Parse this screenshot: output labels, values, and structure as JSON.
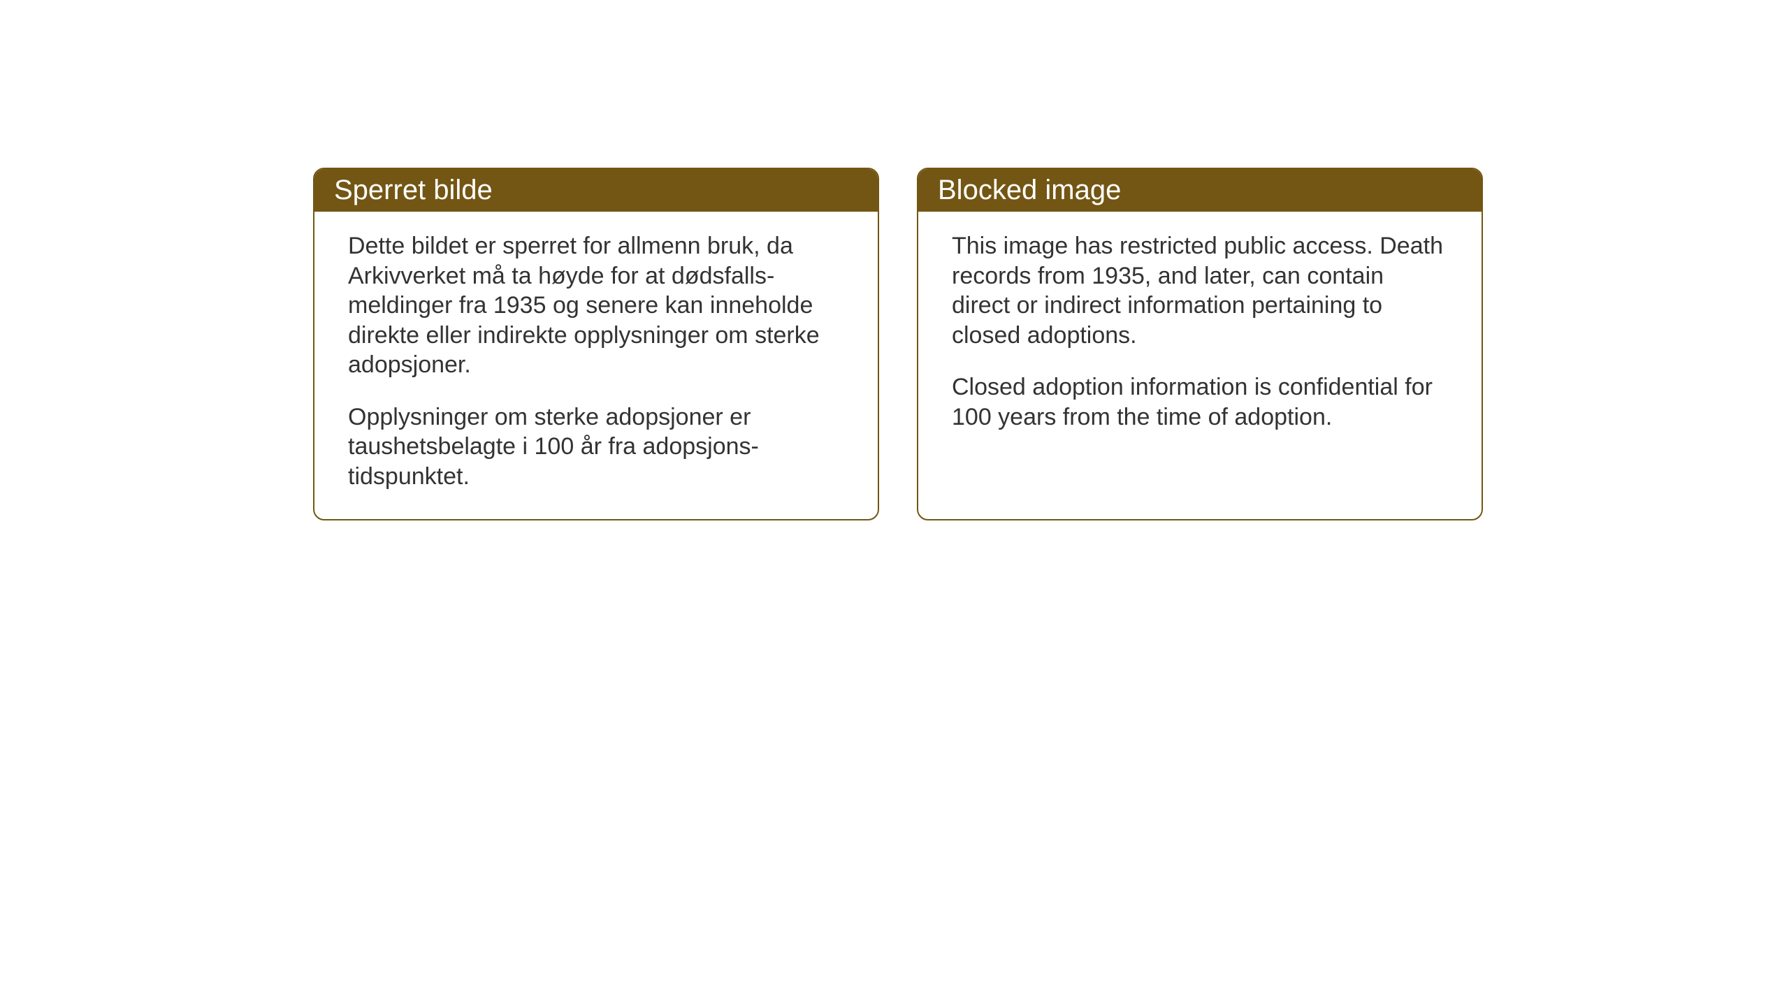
{
  "layout": {
    "background_color": "#ffffff",
    "card_border_color": "#735614",
    "card_border_radius": 16,
    "header_bg_color": "#735614",
    "header_text_color": "#ffffff",
    "body_text_color": "#333333",
    "header_fontsize": 40,
    "body_fontsize": 34
  },
  "notices": {
    "norwegian": {
      "title": "Sperret bilde",
      "paragraph1": "Dette bildet er sperret for allmenn bruk, da Arkivverket må ta høyde for at dødsfalls-meldinger fra 1935 og senere kan inneholde direkte eller indirekte opplysninger om sterke adopsjoner.",
      "paragraph2": "Opplysninger om sterke adopsjoner er taushetsbelagte i 100 år fra adopsjons-tidspunktet."
    },
    "english": {
      "title": "Blocked image",
      "paragraph1": "This image has restricted public access. Death records from 1935, and later, can contain direct or indirect information pertaining to closed adoptions.",
      "paragraph2": "Closed adoption information is confidential for 100 years from the time of adoption."
    }
  }
}
